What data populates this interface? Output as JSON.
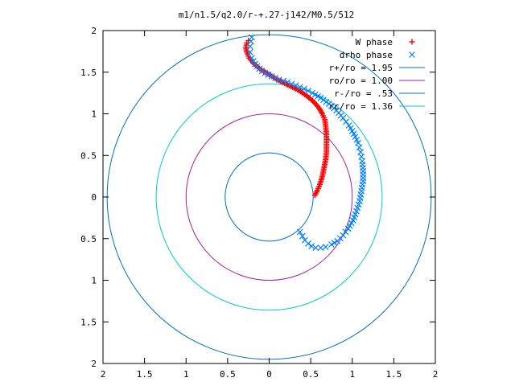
{
  "chart_data": {
    "type": "scatter",
    "title": "m1/n1.5/q2.0/r-+.27-j142/M0.5/512",
    "xlabel": "",
    "ylabel": "",
    "xlim": [
      -2,
      2
    ],
    "ylim": [
      -2,
      2
    ],
    "grid": false,
    "legend_position": "top-right",
    "x_tick_labels": [
      "2",
      "1.5",
      "1",
      "0.5",
      "0",
      "0.5",
      "1",
      "1.5",
      "2"
    ],
    "y_tick_labels": [
      "2",
      "1.5",
      "1",
      "0.5",
      "0",
      "0.5",
      "1",
      "1.5",
      "2"
    ],
    "series": [
      {
        "name": "W phase",
        "marker": "plus",
        "color": "#ff0000",
        "x": [
          0.55,
          0.58,
          0.61,
          0.64,
          0.66,
          0.68,
          0.69,
          0.69,
          0.69,
          0.68,
          0.67,
          0.64,
          0.6,
          0.54,
          0.46,
          0.36,
          0.24,
          0.1,
          0.0,
          -0.1,
          -0.18,
          -0.24,
          -0.27,
          -0.28,
          -0.27,
          -0.25
        ],
        "y": [
          0.02,
          0.08,
          0.15,
          0.25,
          0.35,
          0.45,
          0.55,
          0.65,
          0.75,
          0.85,
          0.93,
          1.0,
          1.07,
          1.14,
          1.21,
          1.28,
          1.34,
          1.41,
          1.47,
          1.53,
          1.6,
          1.67,
          1.74,
          1.8,
          1.85,
          1.88
        ]
      },
      {
        "name": "drho phase",
        "marker": "cross",
        "color": "#0080ff",
        "x": [
          0.37,
          0.4,
          0.43,
          0.47,
          0.51,
          0.56,
          0.62,
          0.68,
          0.75,
          0.82,
          0.89,
          0.95,
          1.01,
          1.05,
          1.09,
          1.11,
          1.13,
          1.13,
          1.12,
          1.1,
          1.07,
          1.02,
          0.96,
          0.89,
          0.81,
          0.72,
          0.62,
          0.52,
          0.42,
          0.32,
          0.22,
          0.12,
          0.03,
          -0.05,
          -0.12,
          -0.17,
          -0.21,
          -0.23,
          -0.23,
          -0.22,
          -0.21
        ],
        "y": [
          -0.42,
          -0.47,
          -0.52,
          -0.56,
          -0.59,
          -0.61,
          -0.61,
          -0.6,
          -0.57,
          -0.53,
          -0.46,
          -0.38,
          -0.28,
          -0.17,
          -0.05,
          0.07,
          0.19,
          0.31,
          0.43,
          0.54,
          0.65,
          0.76,
          0.86,
          0.95,
          1.04,
          1.12,
          1.19,
          1.25,
          1.3,
          1.34,
          1.38,
          1.41,
          1.45,
          1.49,
          1.54,
          1.6,
          1.67,
          1.74,
          1.81,
          1.87,
          1.92
        ]
      },
      {
        "name": "r+/ro = 1.95",
        "type": "circle",
        "radius": 1.95,
        "color": "#0072bd"
      },
      {
        "name": "ro/ro = 1.00",
        "type": "circle",
        "radius": 1.0,
        "color": "#a020a0"
      },
      {
        "name": "r-/ro = .53",
        "type": "circle",
        "radius": 0.53,
        "color": "#0072bd"
      },
      {
        "name": "rc/ro = 1.36",
        "type": "circle",
        "radius": 1.36,
        "color": "#00cccc"
      }
    ]
  }
}
